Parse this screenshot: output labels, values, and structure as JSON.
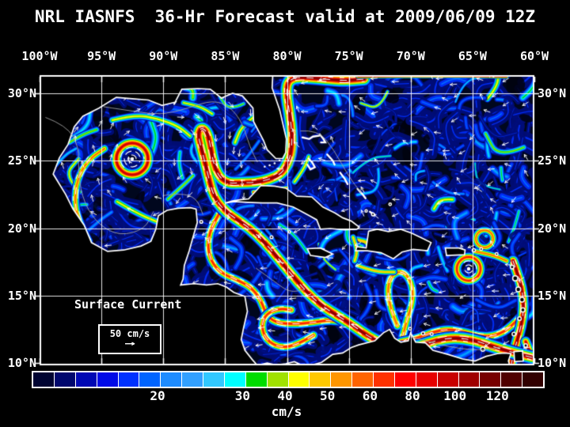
{
  "title": "NRL IASNFS  36-Hr Forecast valid at 2009/06/09 12Z",
  "axes": {
    "lon": [
      "100°W",
      "95°W",
      "90°W",
      "85°W",
      "80°W",
      "75°W",
      "70°W",
      "65°W",
      "60°W"
    ],
    "lat_left": [
      "30°N",
      "25°N",
      "20°N",
      "15°N",
      "10°N"
    ],
    "lat_right": [
      "30°N",
      "25°N",
      "20°N",
      "15°N",
      "10°N"
    ]
  },
  "legend": {
    "title": "Surface Current",
    "scale_value": "50 cm/s",
    "arrow_icon": "→"
  },
  "colorbar": {
    "units": "cm/s",
    "segments": [
      "#000432",
      "#00076e",
      "#0008b4",
      "#000ae6",
      "#0032ff",
      "#0064ff",
      "#1e8cff",
      "#32a0ff",
      "#32c8ff",
      "#00ffff",
      "#00dc00",
      "#a0e100",
      "#ffff00",
      "#ffc800",
      "#ff9600",
      "#ff6400",
      "#ff3200",
      "#ff0000",
      "#e60000",
      "#c80000",
      "#a00000",
      "#780000",
      "#500000",
      "#320000"
    ],
    "tick_labels": [
      {
        "text": "20",
        "boundary": 6
      },
      {
        "text": "30",
        "boundary": 10
      },
      {
        "text": "40",
        "boundary": 12
      },
      {
        "text": "50",
        "boundary": 14
      },
      {
        "text": "60",
        "boundary": 16
      },
      {
        "text": "80",
        "boundary": 18
      },
      {
        "text": "100",
        "boundary": 20
      },
      {
        "text": "120",
        "boundary": 22
      }
    ]
  },
  "colors": {
    "background": "#000000",
    "text": "#ffffff",
    "frame": "#ffffff",
    "ocean_base": "#00071e"
  }
}
